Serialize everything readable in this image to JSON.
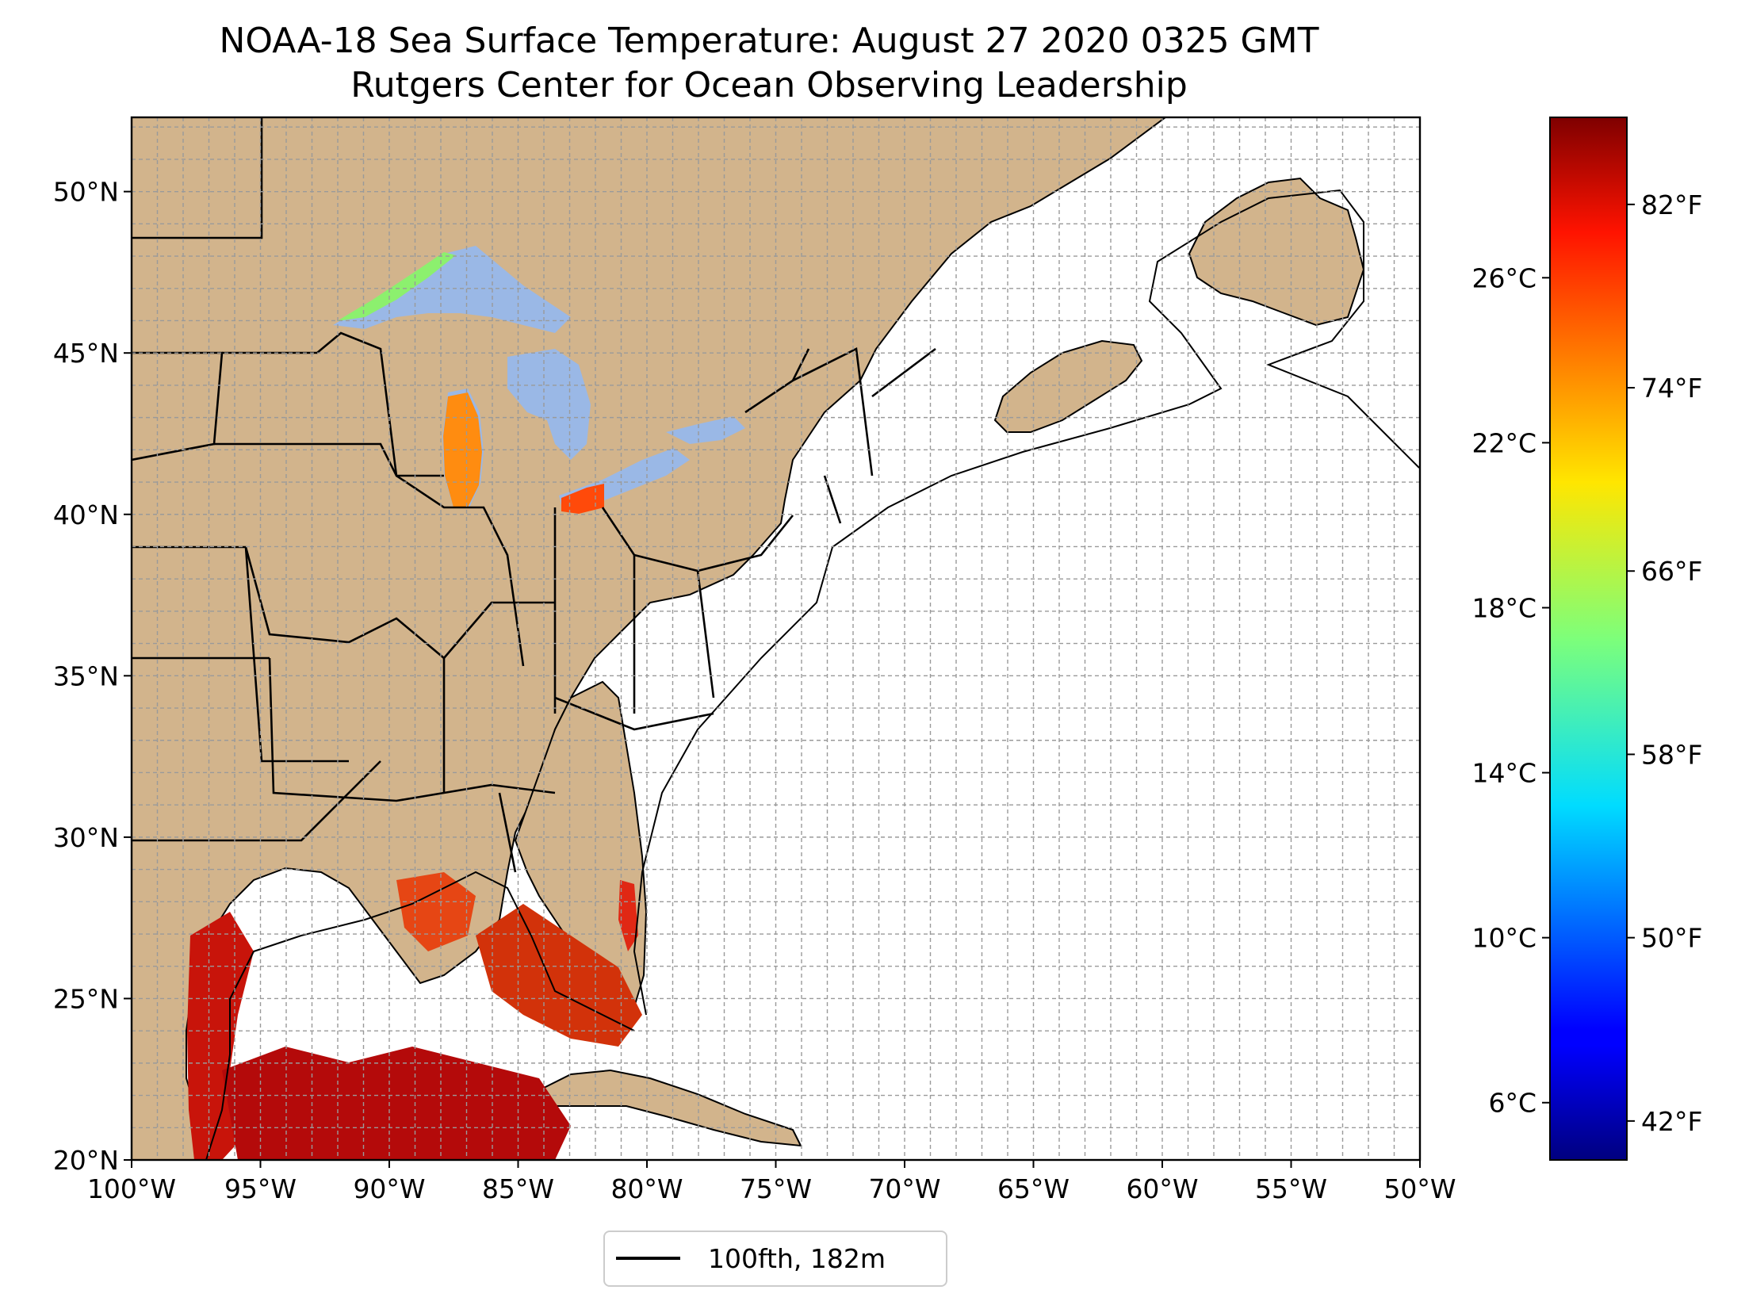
{
  "title": "NOAA-18 Sea Surface Temperature: August 27 2020 0325 GMT",
  "subtitle": "Rutgers Center for Ocean Observing Leadership",
  "map": {
    "extent": {
      "lon_min": -100,
      "lon_max": -50,
      "lat_min": 20,
      "lat_max": 52.3
    },
    "x_ticks": [
      "100°W",
      "95°W",
      "90°W",
      "85°W",
      "80°W",
      "75°W",
      "70°W",
      "65°W",
      "60°W",
      "55°W",
      "50°W"
    ],
    "y_ticks": [
      "20°N",
      "25°N",
      "30°N",
      "35°N",
      "40°N",
      "45°N",
      "50°N"
    ],
    "grid": "dashed, every 1°",
    "land_color": "#d2b48c",
    "ocean_color": "#ffffff",
    "lake_color": "#9ab8e6"
  },
  "legend": {
    "label": "100fth, 182m",
    "line_color": "#000000"
  },
  "colorbar": {
    "colormap": "jet",
    "celsius_ticks": [
      "26°C",
      "22°C",
      "18°C",
      "14°C",
      "10°C",
      "6°C"
    ],
    "fahrenheit_ticks": [
      "82°F",
      "74°F",
      "66°F",
      "58°F",
      "50°F",
      "42°F"
    ],
    "range_f": [
      40.3,
      85.8
    ]
  }
}
